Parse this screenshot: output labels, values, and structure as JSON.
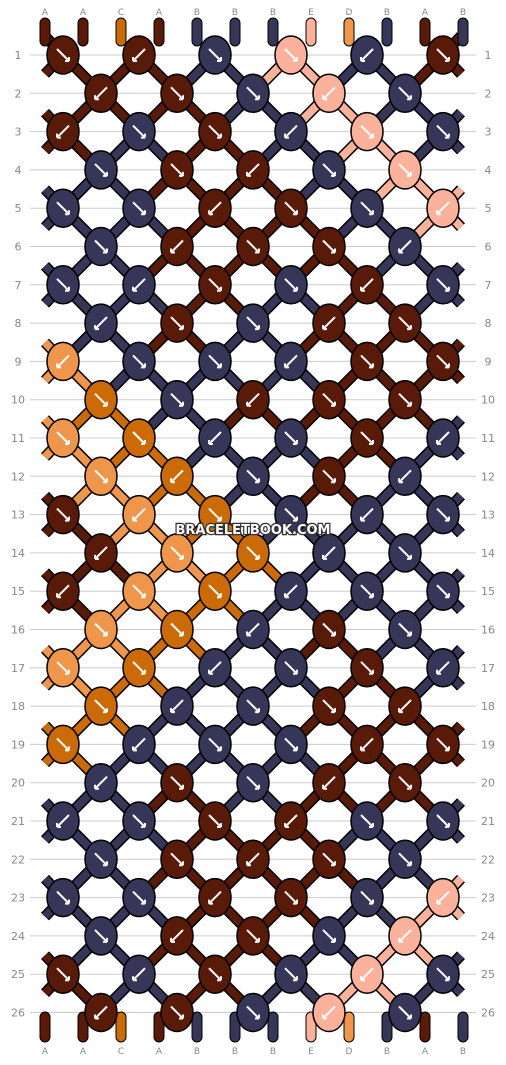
{
  "watermark": "BRACELETBOOK.COM",
  "strings_top": [
    "A",
    "A",
    "C",
    "A",
    "B",
    "B",
    "B",
    "E",
    "D",
    "B",
    "A",
    "B"
  ],
  "strings_bottom": [
    "A",
    "A",
    "C",
    "A",
    "B",
    "B",
    "B",
    "E",
    "D",
    "B",
    "A",
    "B"
  ],
  "row_labels": [
    "1",
    "2",
    "3",
    "4",
    "5",
    "6",
    "7",
    "8",
    "9",
    "10",
    "11",
    "12",
    "13",
    "14",
    "15",
    "16",
    "17",
    "18",
    "19",
    "20",
    "21",
    "22",
    "23",
    "24",
    "25",
    "26"
  ],
  "colors": {
    "A": "#5a1a08",
    "B": "#353658",
    "C": "#cc6a06",
    "D": "#f0964b",
    "E": "#fbb19a",
    "outline": "#000000",
    "label": "#888888",
    "grid": "#cccccc"
  },
  "knot_rows": [
    [
      "A",
      "A",
      "B",
      "E",
      "B",
      "A"
    ],
    [
      "A",
      "A",
      "B",
      "E",
      "B"
    ],
    [
      "A",
      "B",
      "A",
      "B",
      "E",
      "B"
    ],
    [
      "B",
      "A",
      "A",
      "B",
      "E"
    ],
    [
      "B",
      "B",
      "A",
      "A",
      "B",
      "E"
    ],
    [
      "B",
      "A",
      "A",
      "A",
      "B"
    ],
    [
      "B",
      "B",
      "A",
      "B",
      "A",
      "B"
    ],
    [
      "B",
      "A",
      "B",
      "A",
      "A"
    ],
    [
      "D",
      "B",
      "B",
      "B",
      "A",
      "A"
    ],
    [
      "C",
      "B",
      "A",
      "A",
      "A"
    ],
    [
      "D",
      "C",
      "B",
      "B",
      "A",
      "B"
    ],
    [
      "D",
      "C",
      "B",
      "A",
      "B"
    ],
    [
      "A",
      "D",
      "C",
      "B",
      "B",
      "B"
    ],
    [
      "A",
      "D",
      "C",
      "B",
      "B"
    ],
    [
      "A",
      "D",
      "C",
      "B",
      "B",
      "B"
    ],
    [
      "D",
      "C",
      "B",
      "A",
      "B"
    ],
    [
      "D",
      "C",
      "B",
      "B",
      "A",
      "B"
    ],
    [
      "C",
      "B",
      "B",
      "A",
      "A"
    ],
    [
      "C",
      "B",
      "B",
      "B",
      "A",
      "A"
    ],
    [
      "B",
      "A",
      "B",
      "A",
      "A"
    ],
    [
      "B",
      "B",
      "A",
      "A",
      "B",
      "B"
    ],
    [
      "B",
      "A",
      "A",
      "A",
      "B"
    ],
    [
      "B",
      "B",
      "A",
      "A",
      "B",
      "E"
    ],
    [
      "B",
      "A",
      "A",
      "B",
      "E"
    ],
    [
      "A",
      "B",
      "A",
      "B",
      "E",
      "B"
    ],
    [
      "A",
      "A",
      "B",
      "E",
      "B"
    ]
  ]
}
